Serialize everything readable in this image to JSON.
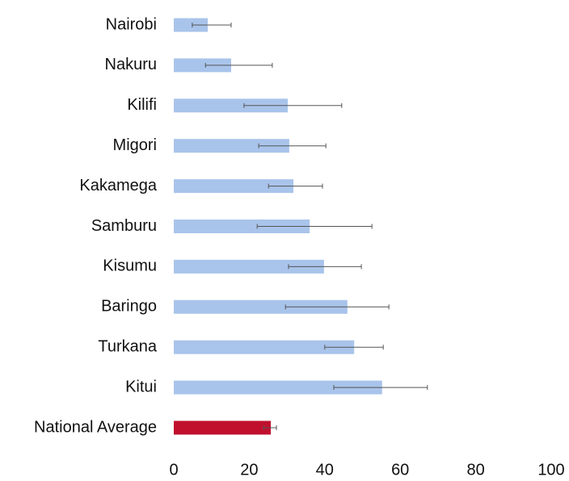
{
  "chart_data": {
    "type": "hbar",
    "categories": [
      "Nairobi",
      "Nakuru",
      "Kilifi",
      "Migori",
      "Kakamega",
      "Samburu",
      "Kisumu",
      "Baringo",
      "Turkana",
      "Kitui",
      "National Average"
    ],
    "values": [
      9.0,
      15.2,
      30.2,
      30.6,
      31.7,
      36.0,
      39.8,
      46.0,
      47.8,
      55.2,
      25.7
    ],
    "ci_low": [
      4.9,
      8.4,
      18.6,
      22.5,
      25.1,
      22.1,
      30.4,
      29.6,
      40.0,
      42.4,
      23.8
    ],
    "ci_high": [
      15.2,
      26.1,
      44.5,
      40.3,
      39.4,
      52.5,
      49.7,
      57.0,
      55.5,
      67.2,
      27.2
    ],
    "colors": [
      "#a9c4eb",
      "#a9c4eb",
      "#a9c4eb",
      "#a9c4eb",
      "#a9c4eb",
      "#a9c4eb",
      "#a9c4eb",
      "#a9c4eb",
      "#a9c4eb",
      "#a9c4eb",
      "#c0102e"
    ],
    "xlim": [
      0,
      100
    ],
    "xticks": [
      0,
      20,
      40,
      60,
      80,
      100
    ],
    "grid": false
  }
}
